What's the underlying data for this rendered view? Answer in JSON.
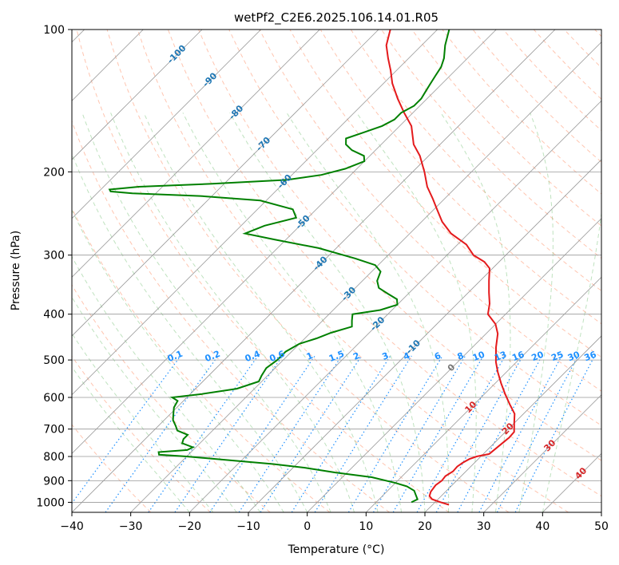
{
  "chart_data": {
    "type": "line",
    "title": "wetPf2_C2E6.2025.106.14.01.R05",
    "xlabel": "Temperature (°C)",
    "ylabel": "Pressure (hPa)",
    "xlim": [
      -40,
      50
    ],
    "ylim": [
      1050,
      100
    ],
    "y_scale": "log",
    "x_ticks": [
      -40,
      -30,
      -20,
      -10,
      0,
      10,
      20,
      30,
      40,
      50
    ],
    "y_ticks": [
      100,
      200,
      300,
      400,
      500,
      600,
      700,
      800,
      900,
      1000
    ],
    "grid": true,
    "skew": 45,
    "series": [
      {
        "role": "temperature",
        "color": "#e41a1c",
        "points": [
          [
            22.8,
            1012
          ],
          [
            21,
            1000
          ],
          [
            19,
            985
          ],
          [
            18,
            970
          ],
          [
            17.5,
            950
          ],
          [
            17.2,
            920
          ],
          [
            17.5,
            900
          ],
          [
            17.3,
            880
          ],
          [
            17.8,
            860
          ],
          [
            17.7,
            840
          ],
          [
            18,
            825
          ],
          [
            18.5,
            810
          ],
          [
            19.3,
            800
          ],
          [
            21,
            790
          ],
          [
            21.3,
            760
          ],
          [
            21.6,
            730
          ],
          [
            21.5,
            710
          ],
          [
            20,
            680
          ],
          [
            18.5,
            650
          ],
          [
            16,
            620
          ],
          [
            13.5,
            590
          ],
          [
            11,
            560
          ],
          [
            8.5,
            530
          ],
          [
            6.5,
            505
          ],
          [
            4,
            470
          ],
          [
            2,
            440
          ],
          [
            0,
            420
          ],
          [
            -3,
            400
          ],
          [
            -4.5,
            380
          ],
          [
            -6.5,
            360
          ],
          [
            -8.5,
            340
          ],
          [
            -10.5,
            320
          ],
          [
            -12.5,
            310
          ],
          [
            -15.5,
            300
          ],
          [
            -18.5,
            285
          ],
          [
            -23,
            270
          ],
          [
            -26.5,
            255
          ],
          [
            -29.5,
            240
          ],
          [
            -32,
            228
          ],
          [
            -35,
            215
          ],
          [
            -38,
            200
          ],
          [
            -41.5,
            185
          ],
          [
            -44.5,
            175
          ],
          [
            -48,
            160
          ],
          [
            -51.5,
            150
          ],
          [
            -55,
            140
          ],
          [
            -58.5,
            130
          ],
          [
            -61,
            122
          ],
          [
            -63.5,
            115
          ],
          [
            -66,
            108
          ],
          [
            -68,
            100
          ]
        ]
      },
      {
        "role": "dewpoint",
        "color": "#008000",
        "points": [
          [
            16,
            1000
          ],
          [
            16.5,
            985
          ],
          [
            15.5,
            965
          ],
          [
            14.5,
            945
          ],
          [
            12.5,
            925
          ],
          [
            10,
            910
          ],
          [
            5,
            885
          ],
          [
            -2,
            865
          ],
          [
            -8,
            845
          ],
          [
            -14,
            830
          ],
          [
            -22,
            815
          ],
          [
            -30,
            800
          ],
          [
            -35,
            793
          ],
          [
            -35.5,
            783
          ],
          [
            -31,
            775
          ],
          [
            -30.5,
            765
          ],
          [
            -33,
            750
          ],
          [
            -33.5,
            735
          ],
          [
            -33.5,
            720
          ],
          [
            -36,
            705
          ],
          [
            -37,
            690
          ],
          [
            -38.5,
            670
          ],
          [
            -39.5,
            650
          ],
          [
            -40.5,
            630
          ],
          [
            -41,
            610
          ],
          [
            -42.5,
            600
          ],
          [
            -38,
            590
          ],
          [
            -33,
            575
          ],
          [
            -30.5,
            555
          ],
          [
            -31,
            540
          ],
          [
            -31.5,
            520
          ],
          [
            -31,
            500
          ],
          [
            -31,
            480
          ],
          [
            -30,
            462
          ],
          [
            -28,
            450
          ],
          [
            -26.5,
            438
          ],
          [
            -24,
            425
          ],
          [
            -25,
            413
          ],
          [
            -26,
            400
          ],
          [
            -22,
            392
          ],
          [
            -20,
            382
          ],
          [
            -21,
            372
          ],
          [
            -23.5,
            362
          ],
          [
            -26,
            352
          ],
          [
            -27.5,
            340
          ],
          [
            -28.5,
            325
          ],
          [
            -30.5,
            315
          ],
          [
            -35,
            305
          ],
          [
            -43,
            290
          ],
          [
            -52,
            278
          ],
          [
            -58,
            270
          ],
          [
            -56,
            260
          ],
          [
            -52,
            250
          ],
          [
            -54,
            240
          ],
          [
            -61,
            230
          ],
          [
            -72,
            225
          ],
          [
            -84,
            222
          ],
          [
            -88,
            220
          ],
          [
            -88.5,
            218
          ],
          [
            -84,
            215
          ],
          [
            -72,
            212
          ],
          [
            -60,
            208
          ],
          [
            -55,
            203
          ],
          [
            -52,
            197
          ],
          [
            -50,
            190
          ],
          [
            -51,
            185
          ],
          [
            -54,
            180
          ],
          [
            -56,
            175
          ],
          [
            -57,
            170
          ],
          [
            -55,
            165
          ],
          [
            -53,
            160
          ],
          [
            -52,
            155
          ],
          [
            -52,
            150
          ],
          [
            -51,
            145
          ],
          [
            -51,
            140
          ],
          [
            -51.5,
            135
          ],
          [
            -52,
            130
          ],
          [
            -52.5,
            125
          ],
          [
            -53,
            120
          ],
          [
            -54,
            115
          ],
          [
            -56,
            108
          ],
          [
            -58,
            100
          ]
        ]
      }
    ],
    "background_lines": {
      "dry_adiabat_labels": [
        "-100",
        "-90",
        "-80",
        "-70",
        "-60",
        "-50",
        "-40",
        "-30",
        "-20",
        "-10",
        "0",
        "10",
        "20",
        "30",
        "40"
      ],
      "mixing_ratio_labels": [
        "0.1",
        "0.2",
        "0.4",
        "0.6",
        "1",
        "1.5",
        "2",
        "3",
        "4",
        "6",
        "8",
        "10",
        "13",
        "16",
        "20",
        "25",
        "30",
        "36"
      ],
      "colors": {
        "temperature_label": "#1f77b4",
        "mixing_ratio": "#1e90ff",
        "dry_adiabat": "#ff7f50",
        "moist_adiabat": "#2ca02c",
        "zero_isotherm_label": "#777777",
        "warm_label": "#d62728",
        "grid": "#999999"
      }
    }
  }
}
